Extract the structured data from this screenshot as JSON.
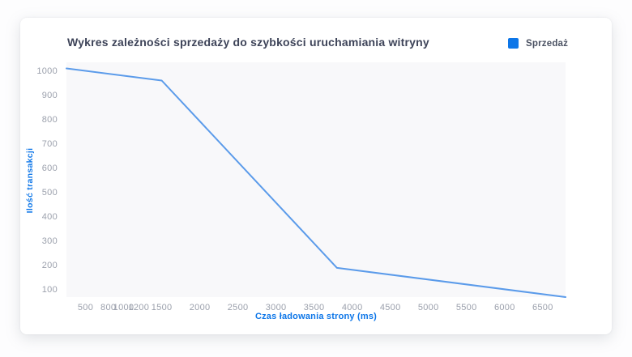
{
  "chart_data": {
    "type": "line",
    "title": "Wykres zależności sprzedaży do szybkości uruchamiania witryny",
    "xlabel": "Czas ładowania strony (ms)",
    "ylabel": "Ilość transakcji",
    "legend_position": "top-right",
    "grid": false,
    "series": [
      {
        "name": "Sprzedaż",
        "color": "#5b9bea",
        "points": [
          [
            250,
            1010
          ],
          [
            1500,
            960
          ],
          [
            3800,
            190
          ],
          [
            6800,
            70
          ]
        ]
      }
    ],
    "x_ticks": [
      500,
      800,
      1000,
      1200,
      1500,
      2000,
      2500,
      3000,
      3500,
      4000,
      4500,
      5000,
      5500,
      6000,
      6500
    ],
    "y_ticks": [
      100,
      200,
      300,
      400,
      500,
      600,
      700,
      800,
      900,
      1000
    ],
    "xlim": [
      250,
      6800
    ],
    "ylim": [
      70,
      1035
    ]
  },
  "colors": {
    "accent": "#0d76e8",
    "line": "#5b9bea",
    "title_text": "#3d4358",
    "tick_text": "#9ba0ac",
    "plot_bg": "#f8f8fa",
    "card_bg": "#ffffff"
  }
}
